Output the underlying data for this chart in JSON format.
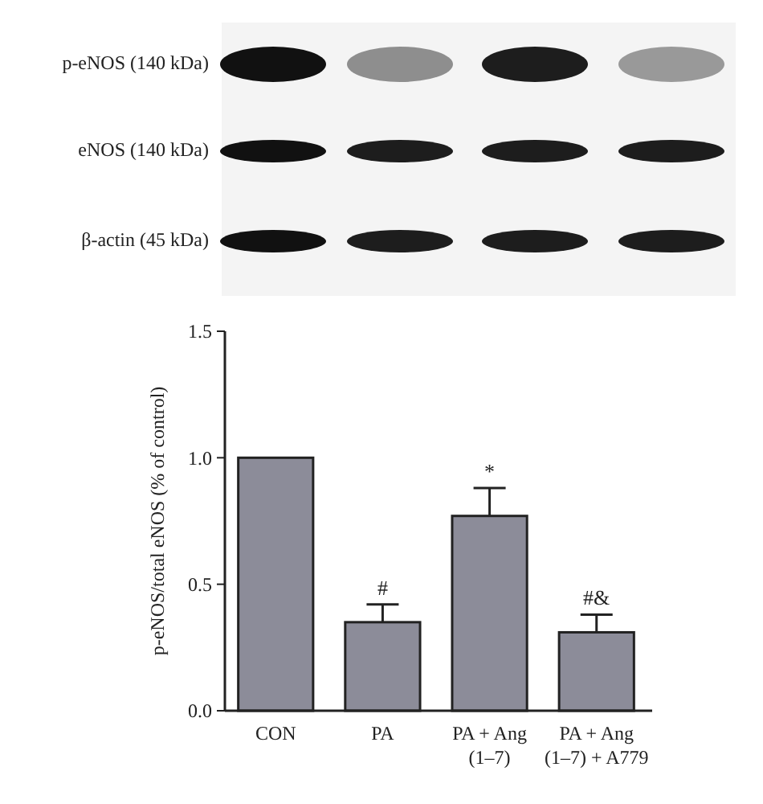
{
  "chart_data": {
    "type": "bar",
    "ylabel": "p-eNOS/total eNOS (% of control)",
    "categories": [
      "CON",
      "PA",
      "PA + Ang\n(1–7)",
      "PA + Ang\n(1–7) + A779"
    ],
    "values": [
      1.0,
      0.35,
      0.77,
      0.31
    ],
    "errors": [
      null,
      0.07,
      0.11,
      0.07
    ],
    "color": "#8c8c99",
    "ylim": [
      0,
      1.5
    ],
    "yticks": [
      {
        "value": 0,
        "label": "0.0"
      },
      {
        "value": 0.5,
        "label": "0.5"
      },
      {
        "value": 1,
        "label": "1.0"
      },
      {
        "value": 1.5,
        "label": "1.5"
      }
    ],
    "annotations": [
      {
        "text": "#",
        "x": "PA",
        "y": 0.42
      },
      {
        "text": "*",
        "x": "PA + Ang\n(1–7)",
        "y": 0.88
      },
      {
        "text": "#&",
        "x": "PA + Ang\n(1–7) + A779",
        "y": 0.38
      },
      "p-eNOS (140 kDa)",
      "eNOS (140 kDa)",
      "β-actin (45 kDa)"
    ]
  }
}
